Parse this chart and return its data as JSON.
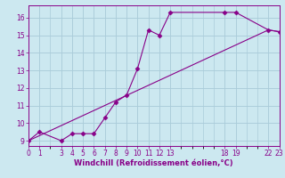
{
  "xlabel": "Windchill (Refroidissement éolien,°C)",
  "bg_color": "#cce8f0",
  "grid_color": "#aaccda",
  "line_color": "#880088",
  "line1_x": [
    0,
    1,
    3,
    4,
    5,
    6,
    7,
    8,
    9,
    10,
    11,
    12,
    13,
    18,
    19,
    22,
    23
  ],
  "line1_y": [
    9.0,
    9.5,
    9.0,
    9.4,
    9.4,
    9.4,
    10.3,
    11.2,
    11.6,
    13.1,
    15.3,
    15.0,
    16.3,
    16.3,
    16.3,
    15.3,
    15.2
  ],
  "line2_x": [
    0,
    22,
    23
  ],
  "line2_y": [
    9.0,
    15.3,
    15.2
  ],
  "xlim": [
    0,
    23
  ],
  "ylim": [
    8.7,
    16.7
  ],
  "xtick_positions": [
    0,
    1,
    3,
    4,
    5,
    6,
    7,
    8,
    9,
    10,
    11,
    12,
    13,
    18,
    19,
    22,
    23
  ],
  "ytick_positions": [
    9,
    10,
    11,
    12,
    13,
    14,
    15,
    16
  ],
  "marker": "D",
  "markersize": 2.5,
  "linewidth": 0.8,
  "tick_labelsize": 5.5,
  "xlabel_fontsize": 6.0
}
